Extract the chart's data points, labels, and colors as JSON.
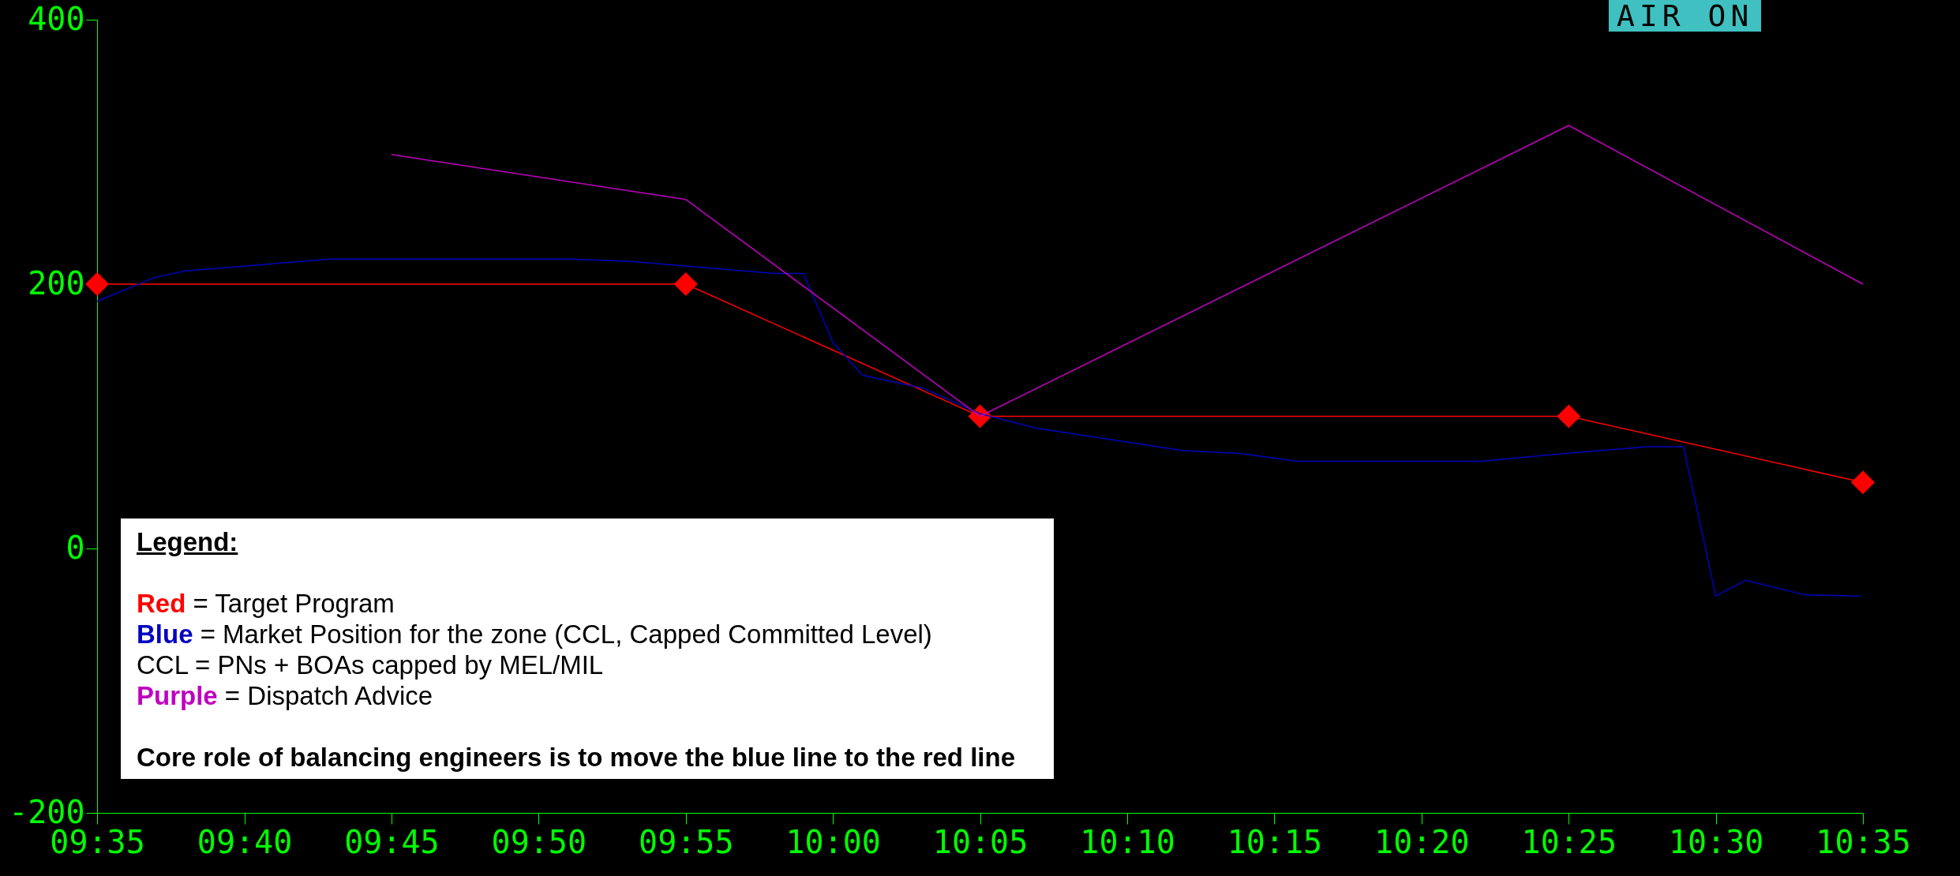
{
  "chart_data": {
    "type": "line",
    "xlim": [
      9.5833,
      10.5833
    ],
    "ylim": [
      -200,
      400
    ],
    "xticks": [
      {
        "value": 9.5833,
        "label": "09:35"
      },
      {
        "value": 9.6667,
        "label": "09:40"
      },
      {
        "value": 9.75,
        "label": "09:45"
      },
      {
        "value": 9.8333,
        "label": "09:50"
      },
      {
        "value": 9.9167,
        "label": "09:55"
      },
      {
        "value": 10.0,
        "label": "10:00"
      },
      {
        "value": 10.0833,
        "label": "10:05"
      },
      {
        "value": 10.1667,
        "label": "10:10"
      },
      {
        "value": 10.25,
        "label": "10:15"
      },
      {
        "value": 10.3333,
        "label": "10:20"
      },
      {
        "value": 10.4167,
        "label": "10:25"
      },
      {
        "value": 10.5,
        "label": "10:30"
      },
      {
        "value": 10.5833,
        "label": "10:35"
      }
    ],
    "yticks": [
      -200,
      0,
      200,
      400
    ],
    "grid": false,
    "series": [
      {
        "color": "#ff0000",
        "marker": "diamond",
        "x": [
          9.5833,
          9.9167,
          10.0833,
          10.4167,
          10.5833
        ],
        "values": [
          200,
          200,
          100,
          100,
          50
        ]
      },
      {
        "color": "#0000c0",
        "marker": "none",
        "x": [
          9.5833,
          9.6158,
          9.6333,
          9.715,
          9.8517,
          9.8867,
          9.9667,
          9.9833,
          10.0,
          10.0167,
          10.0517,
          10.0833,
          10.115,
          10.1983,
          10.23,
          10.2633,
          10.3667,
          10.415,
          10.4617,
          10.4817,
          10.5,
          10.5167,
          10.55,
          10.5817
        ],
        "values": [
          187,
          205,
          210,
          219,
          219,
          217,
          208,
          208,
          156,
          131,
          121,
          102,
          91,
          74,
          72,
          66,
          66,
          72,
          77,
          77,
          -36,
          -24,
          -35,
          -36
        ]
      },
      {
        "color": "#c000c0",
        "marker": "none",
        "x": [
          9.75,
          9.9167,
          10.0833,
          10.4167,
          10.5833
        ],
        "values": [
          298,
          264,
          100,
          320,
          200
        ]
      }
    ],
    "annotations": [
      "AIR ON",
      "Legend:",
      "Red = Target Program",
      "Blue = Market Position for the zone (CCL, Capped Committed Level)",
      "CCL = PNs + BOAs capped by MEL/MIL",
      "Purple = Dispatch Advice",
      "Core role of balancing engineers is to move the blue line to the red line"
    ]
  }
}
